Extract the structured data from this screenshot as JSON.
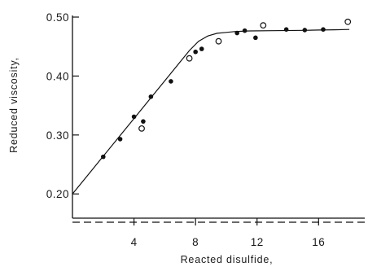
{
  "chart_data": {
    "type": "scatter",
    "xlabel": "Reacted disulfide,",
    "ylabel": "Reduced viscosity,",
    "xlim": [
      0,
      19
    ],
    "ylim": [
      0.152,
      0.5
    ],
    "x_ticks": [
      4,
      8,
      12,
      16
    ],
    "x_tick_labels": [
      "4",
      "8",
      "12",
      "16"
    ],
    "y_ticks": [
      0.2,
      0.3,
      0.4,
      0.5
    ],
    "y_tick_labels": [
      "0.20",
      "0.30",
      "0.40",
      "0.50"
    ],
    "grid": false,
    "series": [
      {
        "marker": "filled-circle",
        "x": [
          2.0,
          3.1,
          4.0,
          4.6,
          5.1,
          6.4,
          8.0,
          8.4,
          10.7,
          11.2,
          11.9,
          13.9,
          15.1,
          16.3
        ],
        "y": [
          0.263,
          0.293,
          0.331,
          0.323,
          0.365,
          0.391,
          0.441,
          0.446,
          0.473,
          0.477,
          0.465,
          0.479,
          0.478,
          0.479
        ]
      },
      {
        "marker": "open-circle",
        "x": [
          4.5,
          7.6,
          9.5,
          12.4,
          17.9
        ],
        "y": [
          0.311,
          0.43,
          0.459,
          0.486,
          0.492
        ]
      }
    ],
    "fit_curve": {
      "x": [
        0,
        1,
        2,
        3,
        4,
        5,
        6,
        7,
        7.6,
        8.2,
        8.8,
        9.4,
        10,
        10.6,
        11.5,
        13,
        15,
        16,
        17,
        18
      ],
      "y": [
        0.2,
        0.232,
        0.264,
        0.296,
        0.328,
        0.36,
        0.392,
        0.424,
        0.4432,
        0.459,
        0.468,
        0.4725,
        0.474,
        0.4755,
        0.4765,
        0.477,
        0.4775,
        0.478,
        0.4785,
        0.479
      ]
    }
  }
}
